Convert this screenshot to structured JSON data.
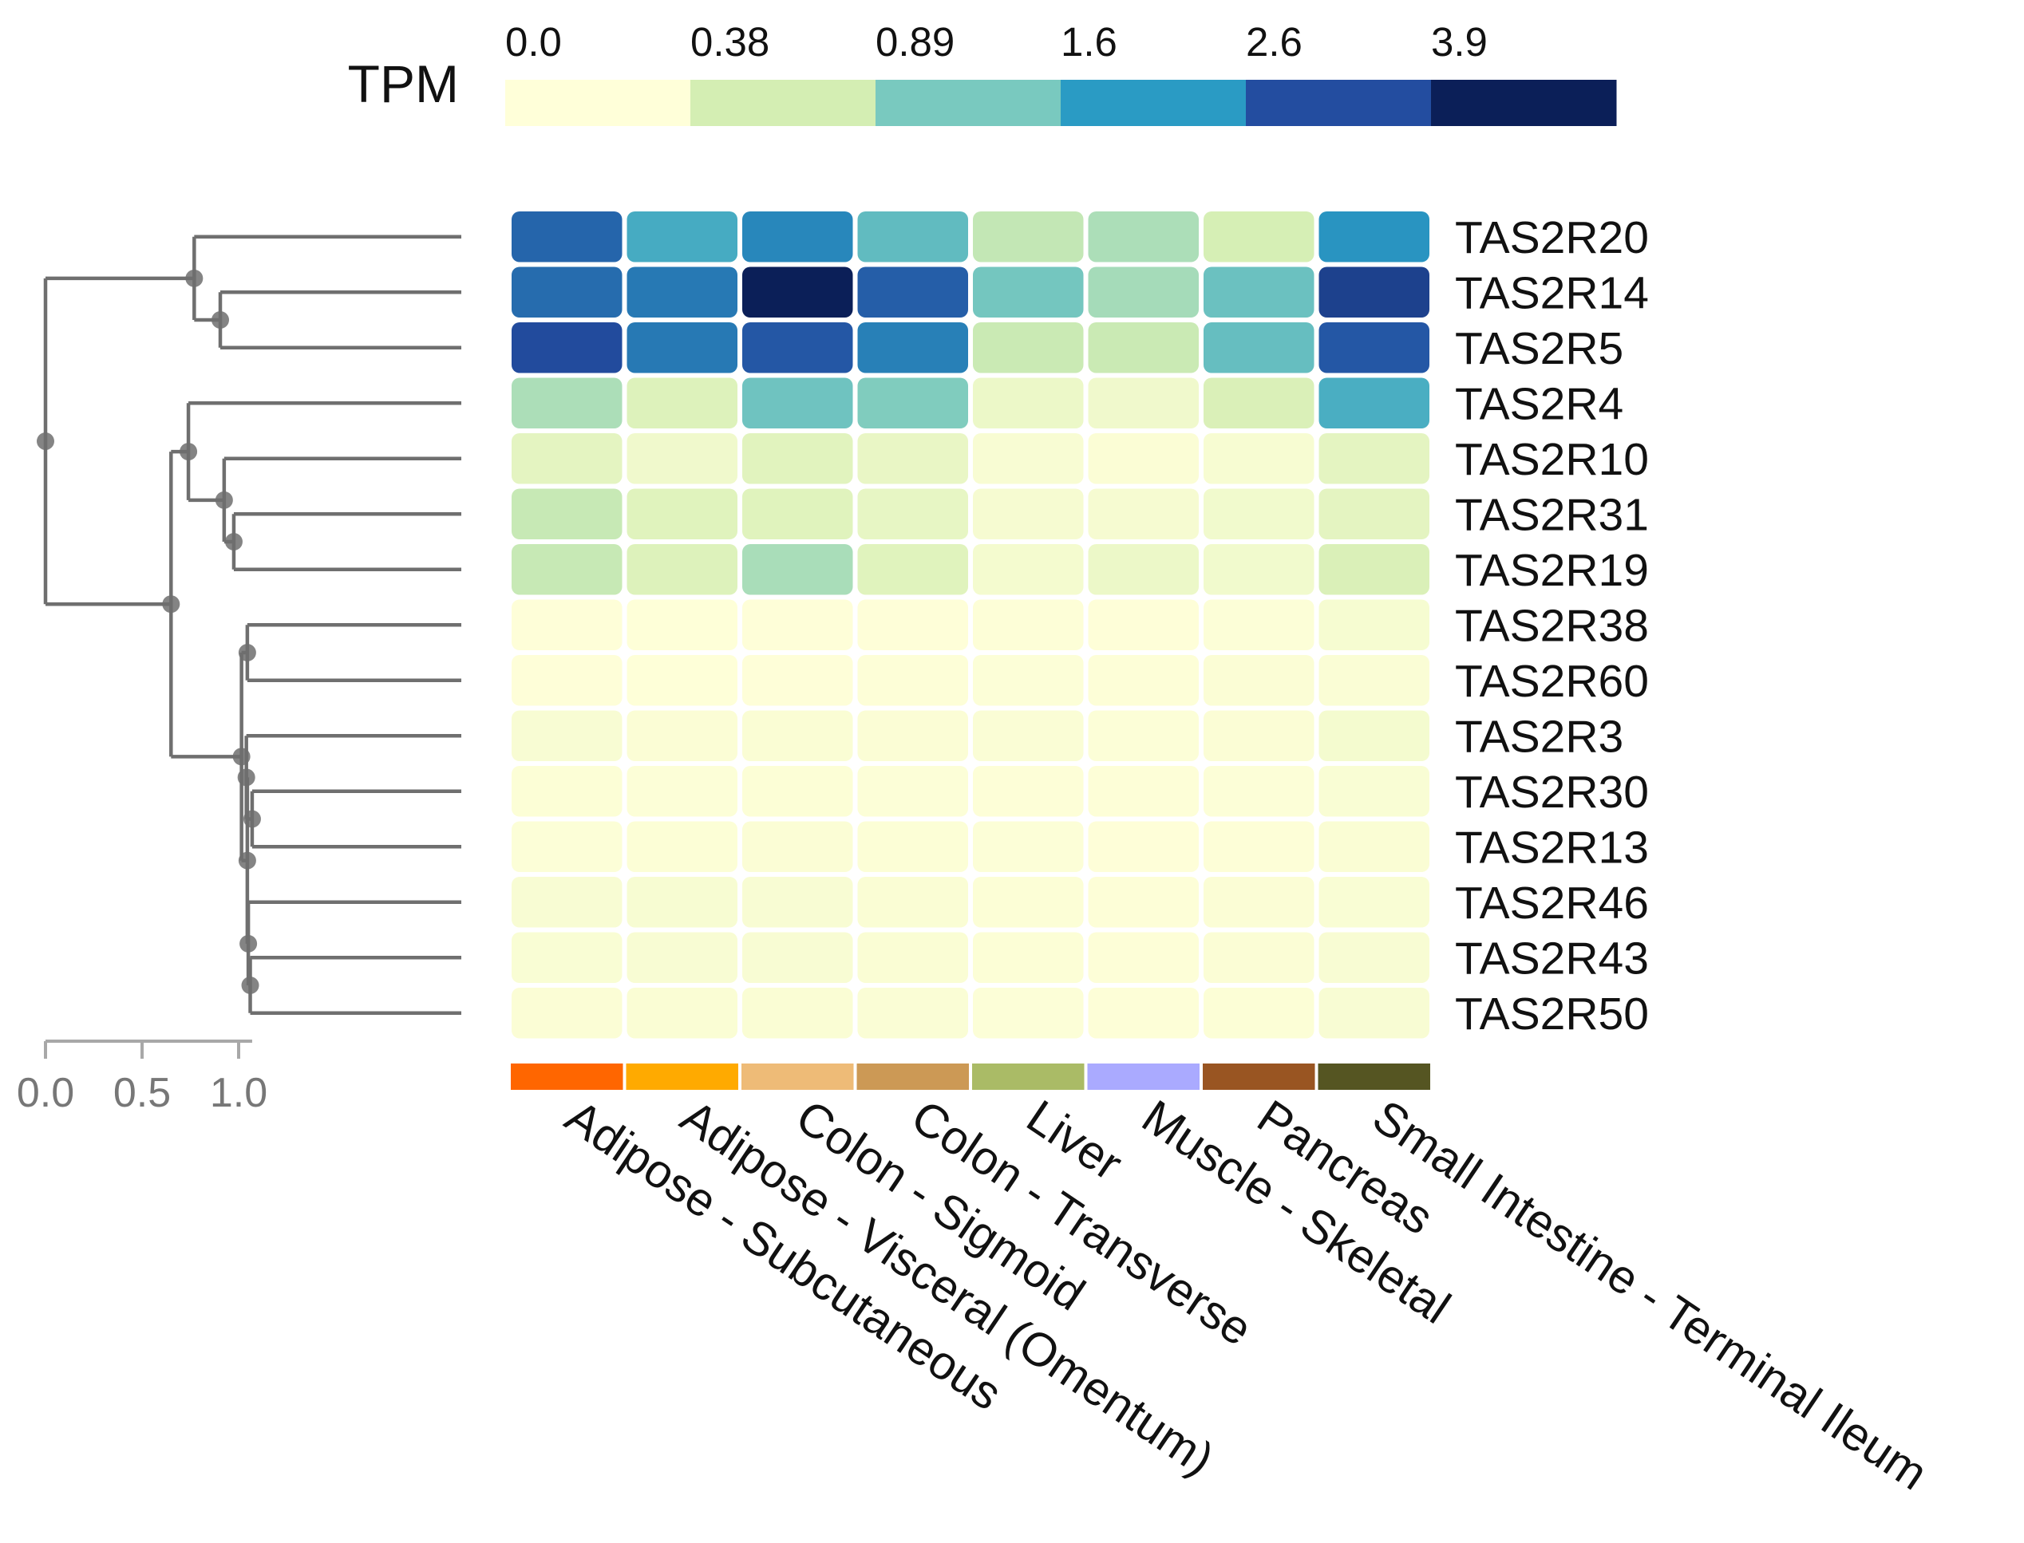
{
  "chart_data": {
    "type": "heatmap",
    "legend": {
      "title": "TPM",
      "ticks": [
        "0.0",
        "0.38",
        "0.89",
        "1.6",
        "2.6",
        "3.9"
      ],
      "bins": [
        {
          "from": 0.0,
          "to": 0.38,
          "color": "#ffffd9"
        },
        {
          "from": 0.38,
          "to": 0.89,
          "color": "#d4eeb3"
        },
        {
          "from": 0.89,
          "to": 1.6,
          "color": "#79c9bf"
        },
        {
          "from": 1.6,
          "to": 2.6,
          "color": "#2a9bc4"
        },
        {
          "from": 2.6,
          "to": 3.9,
          "color": "#234da0"
        },
        {
          "from": 3.9,
          "to": 5.5,
          "color": "#0b1f58"
        }
      ]
    },
    "rows": [
      "TAS2R20",
      "TAS2R14",
      "TAS2R5",
      "TAS2R4",
      "TAS2R10",
      "TAS2R31",
      "TAS2R19",
      "TAS2R38",
      "TAS2R60",
      "TAS2R3",
      "TAS2R30",
      "TAS2R13",
      "TAS2R46",
      "TAS2R43",
      "TAS2R50"
    ],
    "columns": [
      "Adipose - Subcutaneous",
      "Adipose - Visceral (Omentum)",
      "Colon - Sigmoid",
      "Colon - Transverse",
      "Liver",
      "Muscle - Skeletal",
      "Pancreas",
      "Small Intestine - Terminal Ileum"
    ],
    "column_colors": [
      "#ff6600",
      "#ffaa00",
      "#eebb77",
      "#cc9955",
      "#aabb66",
      "#aaaaff",
      "#995522",
      "#555522"
    ],
    "values": [
      [
        2.9,
        1.8,
        2.4,
        1.5,
        0.75,
        0.9,
        0.6,
        2.2
      ],
      [
        2.8,
        2.6,
        4.8,
        3.0,
        1.3,
        0.95,
        1.4,
        3.6
      ],
      [
        3.3,
        2.6,
        3.1,
        2.5,
        0.7,
        0.7,
        1.45,
        3.1
      ],
      [
        0.9,
        0.5,
        1.35,
        1.2,
        0.28,
        0.22,
        0.55,
        1.75
      ],
      [
        0.4,
        0.22,
        0.45,
        0.33,
        0.1,
        0.06,
        0.12,
        0.4
      ],
      [
        0.72,
        0.46,
        0.46,
        0.35,
        0.14,
        0.14,
        0.2,
        0.4
      ],
      [
        0.72,
        0.5,
        0.92,
        0.46,
        0.16,
        0.28,
        0.2,
        0.55
      ],
      [
        0.02,
        0.01,
        0.02,
        0.02,
        0.03,
        0.02,
        0.04,
        0.13
      ],
      [
        0.02,
        0.01,
        0.02,
        0.03,
        0.04,
        0.03,
        0.06,
        0.07
      ],
      [
        0.1,
        0.06,
        0.08,
        0.06,
        0.07,
        0.04,
        0.06,
        0.16
      ],
      [
        0.05,
        0.04,
        0.05,
        0.04,
        0.03,
        0.03,
        0.04,
        0.09
      ],
      [
        0.04,
        0.05,
        0.06,
        0.05,
        0.04,
        0.02,
        0.03,
        0.08
      ],
      [
        0.1,
        0.12,
        0.1,
        0.08,
        0.05,
        0.03,
        0.06,
        0.09
      ],
      [
        0.09,
        0.1,
        0.1,
        0.08,
        0.05,
        0.03,
        0.06,
        0.1
      ],
      [
        0.06,
        0.08,
        0.08,
        0.07,
        0.04,
        0.03,
        0.05,
        0.1
      ]
    ],
    "dendrogram": {
      "axis": {
        "ticks": [
          0.0,
          0.5,
          1.0
        ],
        "tick_labels": [
          "0.0",
          "0.5",
          "1.0"
        ],
        "range": [
          0.0,
          1.07
        ]
      },
      "nodes": [
        {
          "id": "n1",
          "children": [
            "TAS2R14",
            "TAS2R5"
          ],
          "height": 0.905
        },
        {
          "id": "n2",
          "children": [
            "TAS2R20",
            "n1"
          ],
          "height": 0.77
        },
        {
          "id": "n3",
          "children": [
            "TAS2R31",
            "TAS2R19"
          ],
          "height": 0.975
        },
        {
          "id": "n4",
          "children": [
            "TAS2R10",
            "n3"
          ],
          "height": 0.925
        },
        {
          "id": "n5",
          "children": [
            "TAS2R4",
            "n4"
          ],
          "height": 0.74
        },
        {
          "id": "n6",
          "children": [
            "TAS2R38",
            "TAS2R60"
          ],
          "height": 1.045
        },
        {
          "id": "n7",
          "children": [
            "TAS2R30",
            "TAS2R13"
          ],
          "height": 1.07
        },
        {
          "id": "n8",
          "children": [
            "TAS2R3",
            "n7"
          ],
          "height": 1.04
        },
        {
          "id": "n9",
          "children": [
            "TAS2R43",
            "TAS2R50"
          ],
          "height": 1.06
        },
        {
          "id": "n10",
          "children": [
            "TAS2R46",
            "n9"
          ],
          "height": 1.05
        },
        {
          "id": "n11",
          "children": [
            "n8",
            "n10"
          ],
          "height": 1.045
        },
        {
          "id": "n12",
          "children": [
            "n6",
            "n11"
          ],
          "height": 1.015
        },
        {
          "id": "n13",
          "children": [
            "n5",
            "n12"
          ],
          "height": 0.65
        },
        {
          "id": "n14",
          "children": [
            "n2",
            "n13"
          ],
          "height": 0.0
        }
      ]
    }
  }
}
